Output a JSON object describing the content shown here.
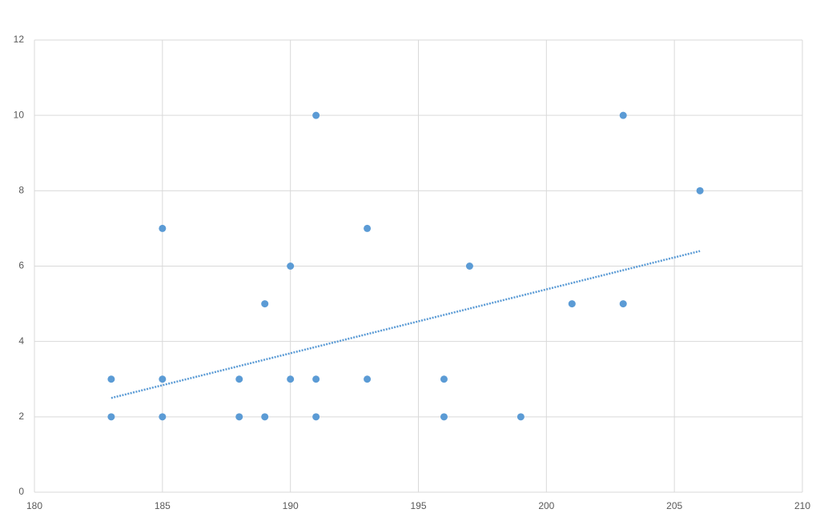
{
  "chart_data": {
    "type": "scatter",
    "x": [
      183,
      183,
      185,
      185,
      185,
      188,
      188,
      189,
      189,
      190,
      190,
      191,
      191,
      191,
      193,
      193,
      196,
      196,
      197,
      199,
      201,
      203,
      203,
      206
    ],
    "values": [
      3,
      2,
      7,
      3,
      2,
      3,
      2,
      5,
      2,
      6,
      3,
      10,
      3,
      2,
      7,
      3,
      3,
      2,
      6,
      2,
      5,
      10,
      5,
      8
    ],
    "color": "#5b9bd5",
    "trendline": {
      "x": [
        183,
        206
      ],
      "values": [
        2.5,
        6.4
      ],
      "color": "#5b9bd5"
    },
    "xlim": [
      180,
      210
    ],
    "xticks": [
      180,
      185,
      190,
      195,
      200,
      205,
      210
    ],
    "ylim": [
      0,
      12
    ],
    "yticks": [
      0,
      2,
      4,
      6,
      8,
      10,
      12
    ],
    "grid": true
  }
}
